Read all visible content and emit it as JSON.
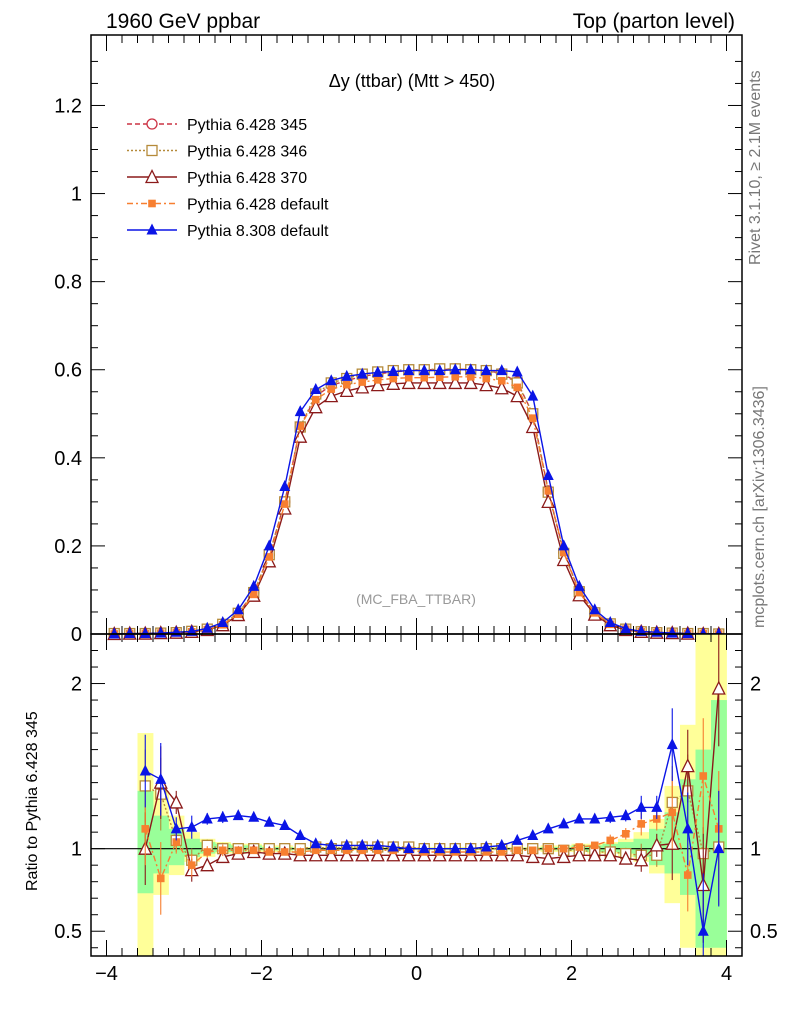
{
  "header": {
    "left": "1960 GeV ppbar",
    "right": "Top (parton level)"
  },
  "side_labels": {
    "top": "Rivet 3.1.10, ≥ 2.1M events",
    "bottom": "mcplots.cern.ch [arXiv:1306.3436]"
  },
  "colors": {
    "p345": "#cc3344",
    "p346": "#b58a3a",
    "p370": "#8b1a1a",
    "p6def": "#f77f30",
    "p8def": "#0a14e6",
    "band_yellow": "#ffff99",
    "band_green": "#99ff99"
  },
  "chart_data": [
    {
      "type": "line",
      "title": "Δy (ttbar) (Mtt > 450)",
      "watermark": "(MC_FBA_TTBAR)",
      "xlim": [
        -4.2,
        4.2
      ],
      "ylim": [
        0,
        1.36
      ],
      "yticks": [
        0,
        0.2,
        0.4,
        0.6,
        0.8,
        1,
        1.2
      ],
      "ytick_labels": [
        "0",
        "0.2",
        "0.4",
        "0.6",
        "0.8",
        "1",
        "1.2"
      ],
      "x": [
        -3.9,
        -3.7,
        -3.5,
        -3.3,
        -3.1,
        -2.9,
        -2.7,
        -2.5,
        -2.3,
        -2.1,
        -1.9,
        -1.7,
        -1.5,
        -1.3,
        -1.1,
        -0.9,
        -0.7,
        -0.5,
        -0.3,
        -0.1,
        0.1,
        0.3,
        0.5,
        0.7,
        0.9,
        1.1,
        1.3,
        1.5,
        1.7,
        1.9,
        2.1,
        2.3,
        2.5,
        2.7,
        2.9,
        3.1,
        3.3,
        3.5,
        3.7,
        3.9
      ],
      "series": [
        {
          "name": "Pythia 6.428 345",
          "key": "p345",
          "marker": "circle-open",
          "dash": "5,3",
          "values": [
            0,
            0.001,
            0.001,
            0.002,
            0.003,
            0.006,
            0.011,
            0.022,
            0.047,
            0.094,
            0.18,
            0.3,
            0.47,
            0.54,
            0.565,
            0.575,
            0.585,
            0.59,
            0.595,
            0.598,
            0.6,
            0.6,
            0.602,
            0.6,
            0.598,
            0.592,
            0.572,
            0.5,
            0.325,
            0.185,
            0.097,
            0.049,
            0.023,
            0.011,
            0.006,
            0.003,
            0.002,
            0.001,
            0.001,
            0
          ]
        },
        {
          "name": "Pythia 6.428 346",
          "key": "p346",
          "marker": "square-open",
          "dash": "2,2",
          "values": [
            0.001,
            0.001,
            0.001,
            0.002,
            0.003,
            0.006,
            0.011,
            0.022,
            0.047,
            0.094,
            0.18,
            0.3,
            0.47,
            0.545,
            0.57,
            0.58,
            0.59,
            0.595,
            0.598,
            0.6,
            0.6,
            0.602,
            0.602,
            0.6,
            0.598,
            0.59,
            0.57,
            0.5,
            0.322,
            0.183,
            0.096,
            0.048,
            0.023,
            0.011,
            0.005,
            0.003,
            0.002,
            0.001,
            0.001,
            0
          ]
        },
        {
          "name": "Pythia 6.428 370",
          "key": "p370",
          "marker": "triangle-open",
          "dash": "",
          "values": [
            0,
            0.001,
            0.001,
            0.002,
            0.003,
            0.005,
            0.009,
            0.02,
            0.043,
            0.087,
            0.165,
            0.285,
            0.448,
            0.515,
            0.54,
            0.552,
            0.56,
            0.565,
            0.568,
            0.57,
            0.57,
            0.57,
            0.57,
            0.57,
            0.565,
            0.558,
            0.54,
            0.47,
            0.3,
            0.168,
            0.088,
            0.044,
            0.02,
            0.009,
            0.005,
            0.003,
            0.002,
            0.001,
            0,
            0
          ]
        },
        {
          "name": "Pythia 6.428 default",
          "key": "p6def",
          "marker": "square-filled",
          "dash": "6,3,2,3",
          "values": [
            0,
            0.001,
            0.001,
            0.002,
            0.003,
            0.005,
            0.01,
            0.021,
            0.045,
            0.09,
            0.175,
            0.295,
            0.472,
            0.532,
            0.556,
            0.566,
            0.572,
            0.577,
            0.58,
            0.582,
            0.582,
            0.583,
            0.584,
            0.584,
            0.58,
            0.575,
            0.56,
            0.49,
            0.325,
            0.185,
            0.094,
            0.048,
            0.022,
            0.011,
            0.005,
            0.003,
            0.002,
            0.001,
            0.001,
            0
          ]
        },
        {
          "name": "Pythia 8.308 default",
          "key": "p8def",
          "marker": "triangle-filled",
          "dash": "",
          "values": [
            0,
            0.001,
            0.001,
            0.002,
            0.004,
            0.006,
            0.013,
            0.026,
            0.055,
            0.108,
            0.2,
            0.335,
            0.505,
            0.555,
            0.575,
            0.585,
            0.59,
            0.594,
            0.596,
            0.598,
            0.598,
            0.598,
            0.6,
            0.6,
            0.598,
            0.598,
            0.595,
            0.54,
            0.36,
            0.2,
            0.108,
            0.055,
            0.026,
            0.012,
            0.006,
            0.004,
            0.002,
            0.001,
            0,
            0
          ]
        }
      ]
    },
    {
      "type": "line",
      "ylabel": "Ratio to Pythia 6.428 345",
      "xlim": [
        -4.2,
        4.2
      ],
      "ylim": [
        0.35,
        2.3
      ],
      "yticks": [
        0.5,
        1,
        2
      ],
      "ytick_labels": [
        "0.5",
        "1",
        "2"
      ],
      "xticks": [
        -4,
        -2,
        0,
        2,
        4
      ],
      "xtick_labels": [
        "−4",
        "−2",
        "0",
        "2",
        "4"
      ],
      "x": [
        -3.5,
        -3.3,
        -3.1,
        -2.9,
        -2.7,
        -2.5,
        -2.3,
        -2.1,
        -1.9,
        -1.7,
        -1.5,
        -1.3,
        -1.1,
        -0.9,
        -0.7,
        -0.5,
        -0.3,
        -0.1,
        0.1,
        0.3,
        0.5,
        0.7,
        0.9,
        1.1,
        1.3,
        1.5,
        1.7,
        1.9,
        2.1,
        2.3,
        2.5,
        2.7,
        2.9,
        3.1,
        3.3,
        3.5,
        3.7,
        3.9
      ],
      "bands": {
        "yellow": [
          [
            0.3,
            1.7
          ],
          [
            0.72,
            1.35
          ],
          [
            0.84,
            1.2
          ],
          [
            0.92,
            1.1
          ],
          [
            0.95,
            1.06
          ],
          [
            0.97,
            1.04
          ],
          [
            0.97,
            1.03
          ],
          [
            0.98,
            1.03
          ],
          [
            0.98,
            1.02
          ],
          [
            0.98,
            1.02
          ],
          [
            0.99,
            1.01
          ],
          [
            0.99,
            1.01
          ],
          [
            0.99,
            1.01
          ],
          [
            0.99,
            1.01
          ],
          [
            0.99,
            1.01
          ],
          [
            0.99,
            1.01
          ],
          [
            0.99,
            1.01
          ],
          [
            0.99,
            1.01
          ],
          [
            0.99,
            1.01
          ],
          [
            0.99,
            1.01
          ],
          [
            0.99,
            1.01
          ],
          [
            0.99,
            1.01
          ],
          [
            0.99,
            1.01
          ],
          [
            0.99,
            1.01
          ],
          [
            0.99,
            1.01
          ],
          [
            0.99,
            1.01
          ],
          [
            0.98,
            1.02
          ],
          [
            0.98,
            1.02
          ],
          [
            0.98,
            1.03
          ],
          [
            0.97,
            1.03
          ],
          [
            0.97,
            1.04
          ],
          [
            0.95,
            1.06
          ],
          [
            0.92,
            1.1
          ],
          [
            0.85,
            1.18
          ],
          [
            0.67,
            1.38
          ],
          [
            0.4,
            1.75
          ],
          [
            0.3,
            2.3
          ],
          [
            0.3,
            2.3
          ]
        ],
        "green": [
          [
            0.73,
            1.35
          ],
          [
            0.85,
            1.2
          ],
          [
            0.9,
            1.12
          ],
          [
            0.95,
            1.06
          ],
          [
            0.97,
            1.04
          ],
          [
            0.98,
            1.03
          ],
          [
            0.98,
            1.02
          ],
          [
            0.99,
            1.02
          ],
          [
            0.99,
            1.01
          ],
          [
            0.99,
            1.01
          ],
          [
            0.995,
            1.005
          ],
          [
            0.995,
            1.005
          ],
          [
            0.995,
            1.005
          ],
          [
            0.995,
            1.005
          ],
          [
            0.995,
            1.005
          ],
          [
            0.995,
            1.005
          ],
          [
            0.995,
            1.005
          ],
          [
            0.995,
            1.005
          ],
          [
            0.995,
            1.005
          ],
          [
            0.995,
            1.005
          ],
          [
            0.995,
            1.005
          ],
          [
            0.995,
            1.005
          ],
          [
            0.995,
            1.005
          ],
          [
            0.995,
            1.005
          ],
          [
            0.995,
            1.005
          ],
          [
            0.995,
            1.005
          ],
          [
            0.99,
            1.01
          ],
          [
            0.99,
            1.01
          ],
          [
            0.99,
            1.02
          ],
          [
            0.98,
            1.02
          ],
          [
            0.98,
            1.03
          ],
          [
            0.97,
            1.04
          ],
          [
            0.95,
            1.06
          ],
          [
            0.9,
            1.12
          ],
          [
            0.85,
            1.22
          ],
          [
            0.72,
            1.42
          ],
          [
            0.4,
            1.6
          ],
          [
            0.4,
            1.9
          ]
        ]
      },
      "series": [
        {
          "name": "Pythia 6.428 346",
          "key": "p346",
          "marker": "square-open",
          "dash": "2,2",
          "values": [
            1.38,
            1.33,
            1.05,
            0.93,
            1.02,
            1.0,
            1.0,
            1.0,
            1.0,
            1.0,
            1.0,
            1.01,
            1.0,
            1.01,
            1.01,
            1.01,
            1.01,
            1.01,
            1.0,
            1.0,
            1.0,
            1.0,
            1.0,
            1.0,
            1.0,
            1.0,
            1.0,
            0.99,
            0.99,
            0.98,
            0.98,
            0.97,
            0.96,
            0.96,
            1.28,
            1.35,
            0.97,
            1.01
          ]
        },
        {
          "name": "Pythia 6.428 370",
          "key": "p370",
          "marker": "triangle-open",
          "dash": "",
          "values": [
            1.0,
            1.4,
            1.28,
            0.87,
            0.9,
            0.95,
            0.97,
            0.98,
            0.97,
            0.97,
            0.96,
            0.96,
            0.96,
            0.96,
            0.96,
            0.96,
            0.96,
            0.96,
            0.96,
            0.96,
            0.96,
            0.96,
            0.96,
            0.96,
            0.96,
            0.95,
            0.94,
            0.95,
            0.96,
            0.96,
            0.96,
            0.94,
            0.93,
            1.02,
            1.03,
            1.5,
            0.78,
            1.97
          ]
        },
        {
          "name": "Pythia 6.428 default",
          "key": "p6def",
          "marker": "square-filled",
          "dash": "6,3,2,3",
          "values": [
            1.12,
            0.82,
            1.04,
            0.9,
            0.98,
            0.99,
            0.99,
            0.99,
            0.98,
            0.98,
            0.98,
            0.99,
            0.99,
            0.99,
            0.99,
            0.99,
            0.99,
            0.99,
            0.98,
            0.98,
            0.98,
            0.98,
            0.98,
            0.98,
            0.99,
            0.99,
            1.0,
            1.0,
            1.01,
            1.02,
            1.05,
            1.09,
            1.15,
            1.18,
            1.22,
            0.84,
            1.44,
            1.12
          ]
        },
        {
          "name": "Pythia 8.308 default",
          "key": "p8def",
          "marker": "triangle-filled",
          "dash": "",
          "values": [
            1.47,
            1.42,
            1.12,
            1.13,
            1.18,
            1.19,
            1.2,
            1.19,
            1.16,
            1.14,
            1.08,
            1.03,
            1.02,
            1.02,
            1.02,
            1.02,
            1.01,
            1.0,
            1.0,
            1.0,
            1.0,
            1.0,
            1.01,
            1.02,
            1.05,
            1.08,
            1.12,
            1.15,
            1.18,
            1.18,
            1.19,
            1.2,
            1.25,
            1.25,
            1.63,
            1.12,
            0.5,
            1.0
          ]
        }
      ]
    }
  ]
}
